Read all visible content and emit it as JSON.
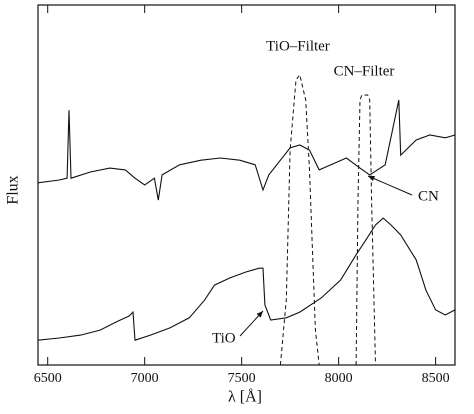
{
  "chart_data": {
    "type": "line",
    "xlabel": "λ [Å]",
    "ylabel": "Flux",
    "xlim": [
      6450,
      8600
    ],
    "ylim": [
      0,
      10
    ],
    "xticks": [
      6500,
      7000,
      7500,
      8000,
      8500
    ],
    "series": [
      {
        "color": "#111111",
        "dash": false,
        "x": [
          6450,
          6560,
          6600,
          6610,
          6620,
          6720,
          6820,
          6900,
          6950,
          7000,
          7050,
          7070,
          7090,
          7180,
          7290,
          7390,
          7490,
          7570,
          7610,
          7640,
          7700,
          7750,
          7800,
          7850,
          7900,
          7960,
          8040,
          8110,
          8160,
          8240,
          8310,
          8320,
          8400,
          8470,
          8550,
          8600
        ],
        "values": [
          5.06,
          5.14,
          5.19,
          7.08,
          5.19,
          5.36,
          5.47,
          5.42,
          5.19,
          5.0,
          5.19,
          4.58,
          5.28,
          5.56,
          5.69,
          5.75,
          5.69,
          5.56,
          4.86,
          5.28,
          5.69,
          6.03,
          6.11,
          5.97,
          5.42,
          5.56,
          5.75,
          5.47,
          5.28,
          5.56,
          7.36,
          5.83,
          6.25,
          6.39,
          6.31,
          6.39
        ]
      },
      {
        "color": "#111111",
        "dash": false,
        "x": [
          6450,
          6560,
          6670,
          6770,
          6850,
          6900,
          6920,
          6940,
          6950,
          7030,
          7130,
          7230,
          7310,
          7360,
          7440,
          7520,
          7590,
          7610,
          7620,
          7650,
          7730,
          7800,
          7910,
          8010,
          8090,
          8140,
          8190,
          8230,
          8270,
          8320,
          8400,
          8450,
          8500,
          8550,
          8600
        ],
        "values": [
          0.69,
          0.75,
          0.83,
          0.97,
          1.19,
          1.31,
          1.36,
          1.47,
          0.69,
          0.83,
          1.03,
          1.31,
          1.81,
          2.22,
          2.42,
          2.58,
          2.69,
          2.69,
          1.67,
          1.25,
          1.31,
          1.47,
          1.86,
          2.36,
          3.06,
          3.47,
          3.89,
          4.08,
          3.89,
          3.61,
          2.92,
          2.08,
          1.53,
          1.39,
          1.53
        ]
      },
      {
        "color": "#111111",
        "dash": true,
        "x": [
          7700,
          7730,
          7750,
          7780,
          7800,
          7830,
          7850,
          7880,
          7900
        ],
        "values": [
          0,
          1.81,
          5.97,
          7.92,
          8.06,
          7.36,
          5.42,
          0.97,
          0
        ]
      },
      {
        "color": "#111111",
        "dash": true,
        "x": [
          8090,
          8100,
          8110,
          8120,
          8150,
          8160,
          8170,
          8190
        ],
        "values": [
          0,
          4.58,
          7.36,
          7.5,
          7.5,
          7.36,
          4.58,
          0
        ]
      }
    ],
    "annotations": [
      {
        "text": "TiO–Filter"
      },
      {
        "text": "CN–Filter"
      },
      {
        "text": "CN"
      },
      {
        "text": "TiO"
      }
    ]
  }
}
